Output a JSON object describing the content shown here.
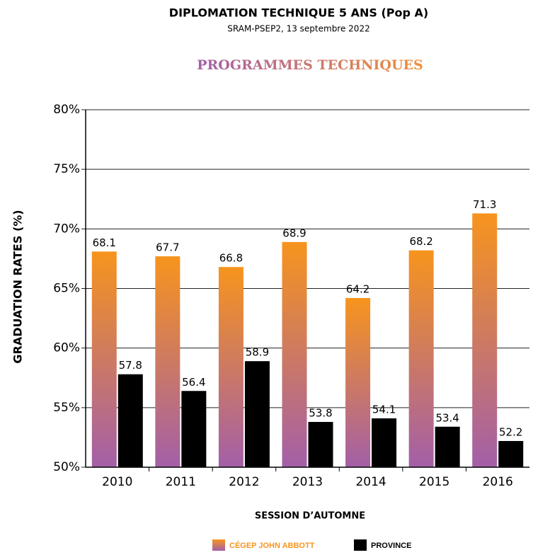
{
  "chart_data": {
    "type": "bar",
    "title": "DIPLOMATION TECHNIQUE 5 ANS (Pop A)",
    "subtitle": "SRAM-PSEP2, 13 septembre 2022",
    "heading": "PROGRAMMES TECHNIQUES",
    "y_label": "GRADUATION RATES (%)",
    "x_label": "SESSION D’AUTOMNE",
    "categories": [
      "2010",
      "2011",
      "2012",
      "2013",
      "2014",
      "2015",
      "2016"
    ],
    "series": [
      {
        "name": "CÉGEP JOHN ABBOTT",
        "color": "#f7941d",
        "values": [
          68.1,
          67.7,
          66.8,
          68.9,
          64.2,
          68.2,
          71.3
        ]
      },
      {
        "name": "PROVINCE",
        "color": "#000000",
        "values": [
          57.8,
          56.4,
          58.9,
          53.8,
          54.1,
          53.4,
          52.2
        ]
      }
    ],
    "ylim": [
      50,
      80
    ],
    "yticks": [
      {
        "value": 50,
        "label": "50%"
      },
      {
        "value": 55,
        "label": "55%"
      },
      {
        "value": 60,
        "label": "60%"
      },
      {
        "value": 65,
        "label": "65%"
      },
      {
        "value": 70,
        "label": "70%"
      },
      {
        "value": 75,
        "label": "75%"
      },
      {
        "value": 80,
        "label": "80%"
      }
    ],
    "grid": true
  }
}
